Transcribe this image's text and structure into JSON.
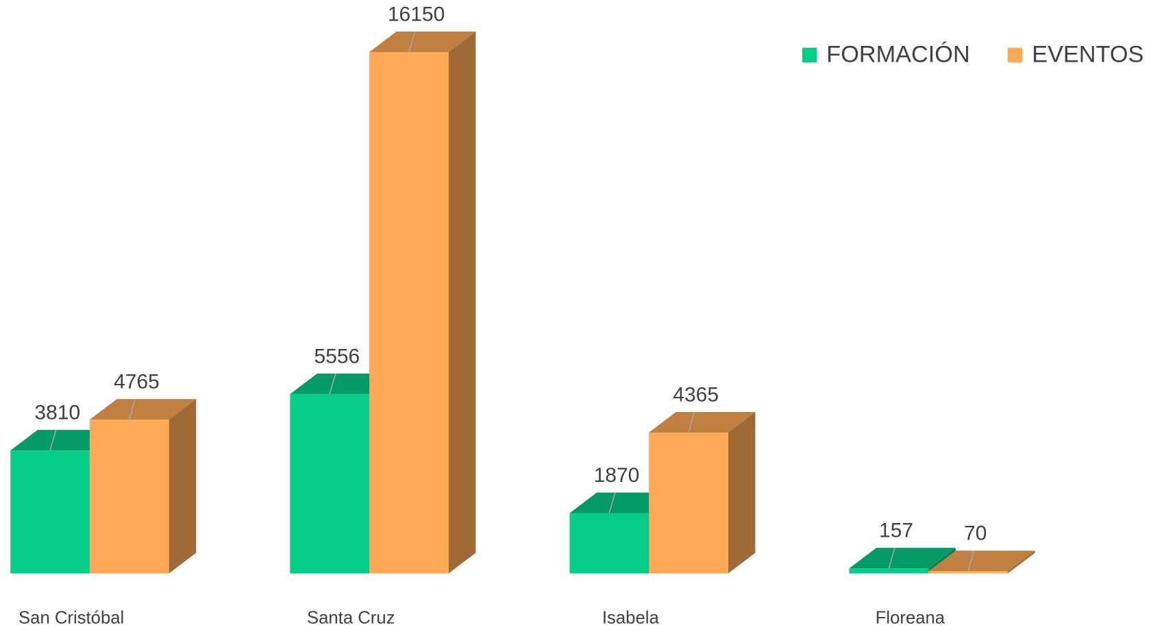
{
  "chart_data": {
    "type": "bar3d",
    "categories": [
      "San Cristóbal",
      "Santa Cruz",
      "Isabela",
      "Floreana"
    ],
    "series": [
      {
        "name": "FORMACIÓN",
        "color": "#05cc87",
        "values": [
          3810,
          5556,
          1870,
          157
        ]
      },
      {
        "name": "EVENTOS",
        "color": "#fda955",
        "values": [
          4765,
          16150,
          4365,
          70
        ]
      }
    ],
    "legend": "top-right"
  }
}
